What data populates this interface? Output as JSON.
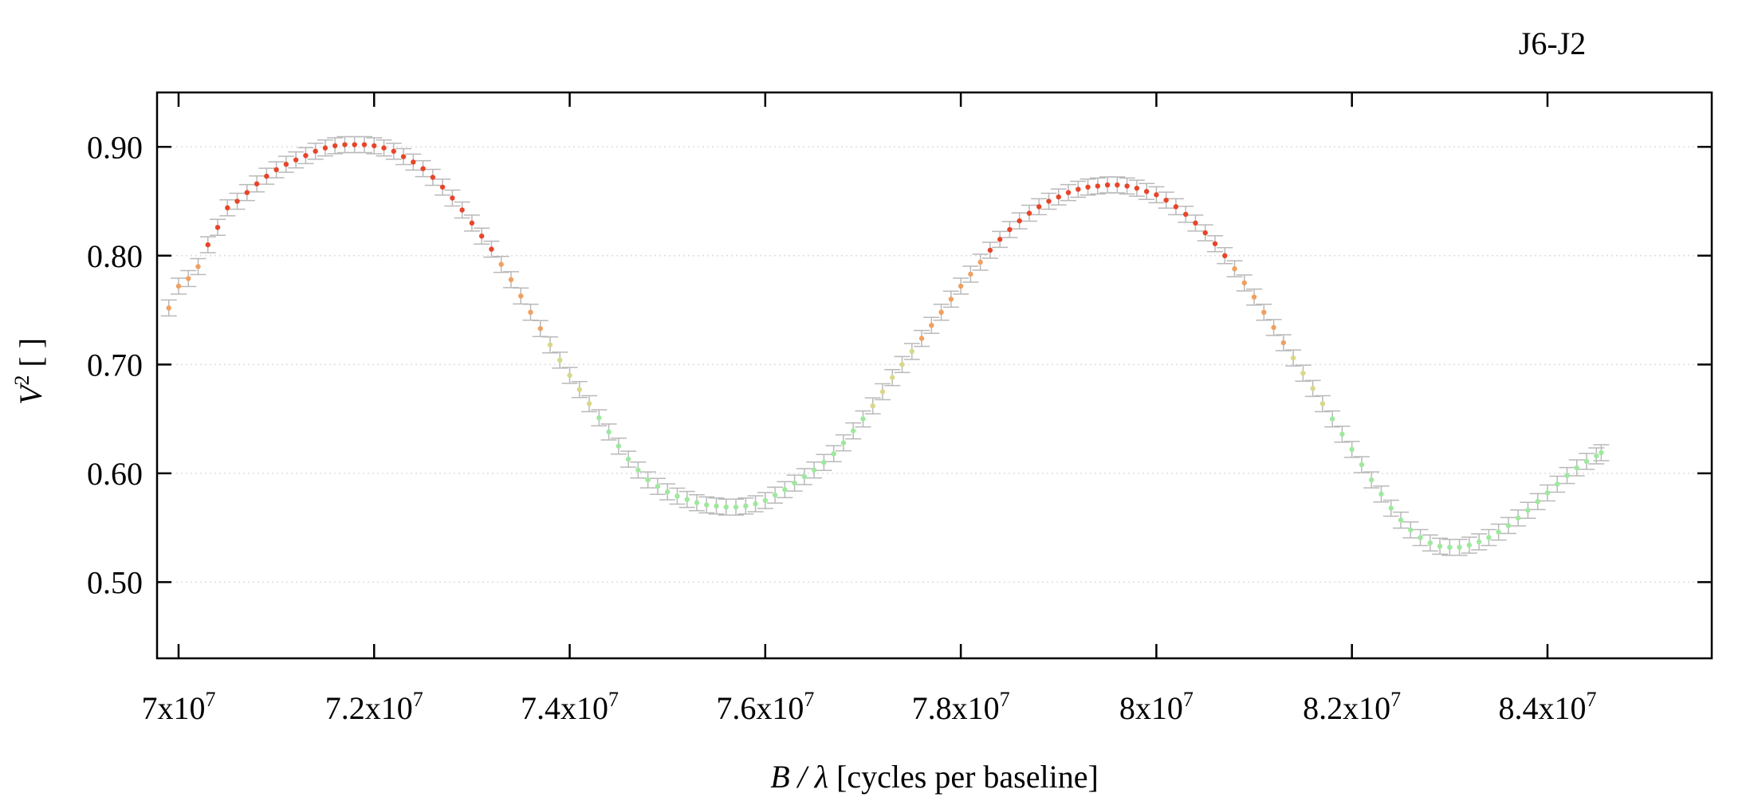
{
  "chart_data": {
    "type": "scatter",
    "title": "J6-J2",
    "xlabel_var": "B / λ",
    "xlabel_unit": " [cycles per baseline]",
    "ylabel_var": "V",
    "ylabel_sup": "2",
    "ylabel_unit": " [ ]",
    "xlim": [
      69780000,
      85680000
    ],
    "ylim": [
      0.43,
      0.95
    ],
    "grid": true,
    "legend": "none",
    "xticks": [
      {
        "value": 70000000,
        "mantissa": "7x10",
        "exp": "7"
      },
      {
        "value": 72000000,
        "mantissa": "7.2x10",
        "exp": "7"
      },
      {
        "value": 74000000,
        "mantissa": "7.4x10",
        "exp": "7"
      },
      {
        "value": 76000000,
        "mantissa": "7.6x10",
        "exp": "7"
      },
      {
        "value": 78000000,
        "mantissa": "7.8x10",
        "exp": "7"
      },
      {
        "value": 80000000,
        "mantissa": "8x10",
        "exp": "7"
      },
      {
        "value": 82000000,
        "mantissa": "8.2x10",
        "exp": "7"
      },
      {
        "value": 84000000,
        "mantissa": "8.4x10",
        "exp": "7"
      }
    ],
    "yticks": [
      {
        "value": 0.5,
        "label": "0.50"
      },
      {
        "value": 0.6,
        "label": "0.60"
      },
      {
        "value": 0.7,
        "label": "0.70"
      },
      {
        "value": 0.8,
        "label": "0.80"
      },
      {
        "value": 0.9,
        "label": "0.90"
      }
    ],
    "colors": {
      "error_bar": "#b9b9b9",
      "grid": "#dddddd",
      "point_high": "#e8452a",
      "point_mid_high": "#f0a060",
      "point_mid_low": "#d8d88a",
      "point_low": "#9ee89e"
    },
    "series": [
      {
        "points": [
          [
            69900000,
            0.752
          ],
          [
            70000000,
            0.772
          ],
          [
            70100000,
            0.779
          ],
          [
            70200000,
            0.79
          ],
          [
            70300000,
            0.81
          ],
          [
            70400000,
            0.826
          ],
          [
            70500000,
            0.844
          ],
          [
            70600000,
            0.85
          ],
          [
            70700000,
            0.858
          ],
          [
            70800000,
            0.866
          ],
          [
            70900000,
            0.873
          ],
          [
            71000000,
            0.879
          ],
          [
            71100000,
            0.884
          ],
          [
            71200000,
            0.888
          ],
          [
            71300000,
            0.892
          ],
          [
            71400000,
            0.896
          ],
          [
            71500000,
            0.899
          ],
          [
            71600000,
            0.901
          ],
          [
            71700000,
            0.902
          ],
          [
            71800000,
            0.902
          ],
          [
            71900000,
            0.902
          ],
          [
            72000000,
            0.901
          ],
          [
            72100000,
            0.899
          ],
          [
            72200000,
            0.896
          ],
          [
            72300000,
            0.891
          ],
          [
            72400000,
            0.886
          ],
          [
            72500000,
            0.88
          ],
          [
            72600000,
            0.872
          ],
          [
            72700000,
            0.863
          ],
          [
            72800000,
            0.853
          ],
          [
            72900000,
            0.842
          ],
          [
            73000000,
            0.83
          ],
          [
            73100000,
            0.818
          ],
          [
            73200000,
            0.806
          ],
          [
            73300000,
            0.792
          ],
          [
            73400000,
            0.778
          ],
          [
            73500000,
            0.763
          ],
          [
            73600000,
            0.748
          ],
          [
            73700000,
            0.733
          ],
          [
            73800000,
            0.718
          ],
          [
            73900000,
            0.704
          ],
          [
            74000000,
            0.69
          ],
          [
            74100000,
            0.677
          ],
          [
            74200000,
            0.664
          ],
          [
            74300000,
            0.651
          ],
          [
            74400000,
            0.638
          ],
          [
            74500000,
            0.625
          ],
          [
            74600000,
            0.613
          ],
          [
            74700000,
            0.603
          ],
          [
            74800000,
            0.594
          ],
          [
            74900000,
            0.588
          ],
          [
            75000000,
            0.583
          ],
          [
            75100000,
            0.579
          ],
          [
            75200000,
            0.576
          ],
          [
            75300000,
            0.573
          ],
          [
            75400000,
            0.571
          ],
          [
            75500000,
            0.57
          ],
          [
            75600000,
            0.569
          ],
          [
            75700000,
            0.569
          ],
          [
            75800000,
            0.57
          ],
          [
            75900000,
            0.572
          ],
          [
            76000000,
            0.575
          ],
          [
            76100000,
            0.58
          ],
          [
            76200000,
            0.585
          ],
          [
            76300000,
            0.591
          ],
          [
            76400000,
            0.597
          ],
          [
            76500000,
            0.603
          ],
          [
            76600000,
            0.61
          ],
          [
            76700000,
            0.618
          ],
          [
            76800000,
            0.628
          ],
          [
            76900000,
            0.639
          ],
          [
            77000000,
            0.65
          ],
          [
            77100000,
            0.662
          ],
          [
            77200000,
            0.675
          ],
          [
            77300000,
            0.688
          ],
          [
            77400000,
            0.7
          ],
          [
            77500000,
            0.712
          ],
          [
            77600000,
            0.724
          ],
          [
            77700000,
            0.736
          ],
          [
            77800000,
            0.748
          ],
          [
            77900000,
            0.76
          ],
          [
            78000000,
            0.772
          ],
          [
            78100000,
            0.783
          ],
          [
            78200000,
            0.794
          ],
          [
            78300000,
            0.805
          ],
          [
            78400000,
            0.815
          ],
          [
            78500000,
            0.824
          ],
          [
            78600000,
            0.832
          ],
          [
            78700000,
            0.839
          ],
          [
            78800000,
            0.845
          ],
          [
            78900000,
            0.85
          ],
          [
            79000000,
            0.854
          ],
          [
            79100000,
            0.858
          ],
          [
            79200000,
            0.861
          ],
          [
            79300000,
            0.863
          ],
          [
            79400000,
            0.864
          ],
          [
            79500000,
            0.865
          ],
          [
            79600000,
            0.865
          ],
          [
            79700000,
            0.864
          ],
          [
            79800000,
            0.862
          ],
          [
            79900000,
            0.859
          ],
          [
            80000000,
            0.856
          ],
          [
            80100000,
            0.851
          ],
          [
            80200000,
            0.845
          ],
          [
            80300000,
            0.838
          ],
          [
            80400000,
            0.83
          ],
          [
            80500000,
            0.821
          ],
          [
            80600000,
            0.811
          ],
          [
            80700000,
            0.8
          ],
          [
            80800000,
            0.788
          ],
          [
            80900000,
            0.775
          ],
          [
            81000000,
            0.762
          ],
          [
            81100000,
            0.748
          ],
          [
            81200000,
            0.734
          ],
          [
            81300000,
            0.72
          ],
          [
            81400000,
            0.706
          ],
          [
            81500000,
            0.692
          ],
          [
            81600000,
            0.678
          ],
          [
            81700000,
            0.664
          ],
          [
            81800000,
            0.65
          ],
          [
            81900000,
            0.636
          ],
          [
            82000000,
            0.622
          ],
          [
            82100000,
            0.608
          ],
          [
            82200000,
            0.594
          ],
          [
            82300000,
            0.581
          ],
          [
            82400000,
            0.568
          ],
          [
            82500000,
            0.557
          ],
          [
            82600000,
            0.548
          ],
          [
            82700000,
            0.541
          ],
          [
            82800000,
            0.536
          ],
          [
            82900000,
            0.533
          ],
          [
            83000000,
            0.532
          ],
          [
            83100000,
            0.532
          ],
          [
            83200000,
            0.534
          ],
          [
            83300000,
            0.537
          ],
          [
            83400000,
            0.541
          ],
          [
            83500000,
            0.546
          ],
          [
            83600000,
            0.552
          ],
          [
            83700000,
            0.559
          ],
          [
            83800000,
            0.566
          ],
          [
            83900000,
            0.574
          ],
          [
            84000000,
            0.582
          ],
          [
            84100000,
            0.59
          ],
          [
            84200000,
            0.598
          ],
          [
            84300000,
            0.605
          ],
          [
            84400000,
            0.611
          ],
          [
            84500000,
            0.616
          ],
          [
            84550000,
            0.619
          ]
        ]
      }
    ]
  }
}
